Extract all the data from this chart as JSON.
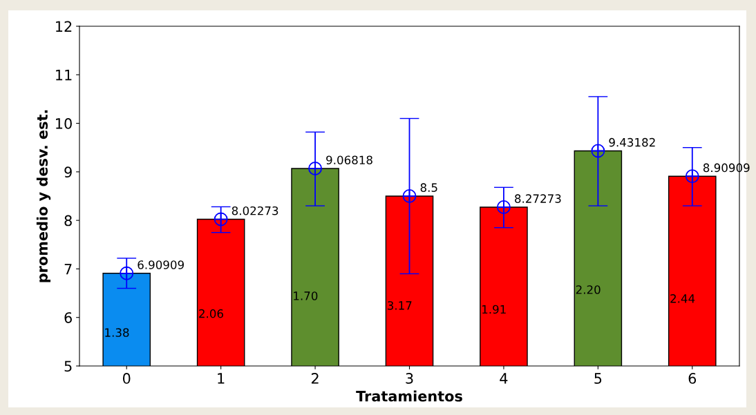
{
  "chart_data": {
    "type": "bar",
    "xlabel": "Tratamientos",
    "ylabel": "promedio y desv. est.",
    "categories": [
      "0",
      "1",
      "2",
      "3",
      "4",
      "5",
      "6"
    ],
    "series": [
      {
        "values": [
          6.90909,
          8.02273,
          9.06818,
          8.5,
          8.27273,
          9.43182,
          8.90909
        ],
        "colors": [
          "#0a8cf0",
          "#ff0000",
          "#5e8e2e",
          "#ff0000",
          "#ff0000",
          "#5e8e2e",
          "#ff0000"
        ]
      },
      {
        "type": "scatter",
        "color": "#0000ff",
        "marker": "circle",
        "values": [
          6.90909,
          8.02273,
          9.06818,
          8.5,
          8.27273,
          9.43182,
          8.90909
        ],
        "errors": [
          [
            6.6,
            7.22
          ],
          [
            7.75,
            8.28
          ],
          [
            8.3,
            9.82
          ],
          [
            6.9,
            10.1
          ],
          [
            7.85,
            8.68
          ],
          [
            8.3,
            10.55
          ],
          [
            8.3,
            9.5
          ]
        ],
        "value_labels": [
          "6.90909",
          "8.02273",
          "9.06818",
          "8.5",
          "8.27273",
          "9.43182",
          "8.90909"
        ]
      }
    ],
    "annotations": [
      "1.38",
      "2.06",
      "1.70",
      "3.17",
      "1.91",
      "2.20",
      "2.44"
    ],
    "ylim": [
      5,
      12
    ],
    "yticks": [
      5,
      6,
      7,
      8,
      9,
      10,
      11,
      12
    ],
    "grid": false
  }
}
